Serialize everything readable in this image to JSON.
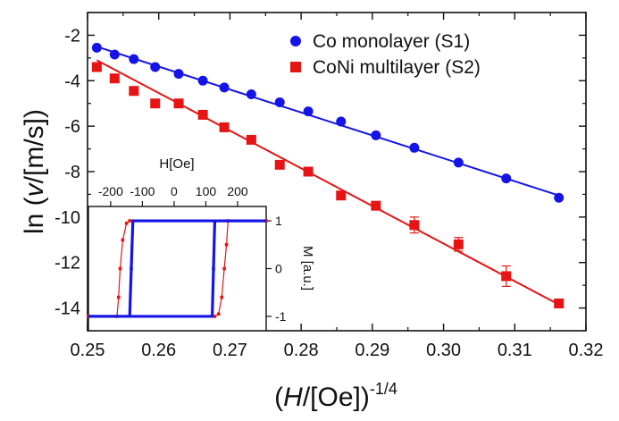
{
  "chart_data": [
    {
      "type": "scatter",
      "xlabel_main": "(H/[Oe])",
      "xlabel_italic": "H",
      "xlabel_exp": "-1/4",
      "ylabel_prefix": "ln (",
      "ylabel_italic": "v",
      "ylabel_suffix": "/[m/s])",
      "xlim": [
        0.25,
        0.32
      ],
      "ylim": [
        -15,
        -1
      ],
      "xticks": [
        "0.25",
        "0.26",
        "0.27",
        "0.28",
        "0.29",
        "0.30",
        "0.31",
        "0.32"
      ],
      "yticks": [
        "-14",
        "-12",
        "-10",
        "-8",
        "-6",
        "-4",
        "-2"
      ],
      "legend_position": "top-right",
      "series": [
        {
          "name": "Co monolayer (S1)",
          "marker": "circle",
          "color": "#1414e6",
          "x": [
            0.2513,
            0.2538,
            0.2565,
            0.2595,
            0.2628,
            0.2662,
            0.2692,
            0.273,
            0.277,
            0.281,
            0.2856,
            0.2905,
            0.2959,
            0.3021,
            0.3088,
            0.3162
          ],
          "y": [
            -2.55,
            -2.85,
            -3.05,
            -3.4,
            -3.7,
            -4.0,
            -4.3,
            -4.6,
            -4.95,
            -5.35,
            -5.8,
            -6.4,
            -6.95,
            -7.6,
            -8.3,
            -9.15
          ],
          "fit": [
            [
              0.2513,
              -2.5
            ],
            [
              0.3162,
              -9.05
            ]
          ]
        },
        {
          "name": "CoNi multilayer (S2)",
          "marker": "square",
          "color": "#e61414",
          "x": [
            0.2513,
            0.2538,
            0.2565,
            0.2595,
            0.2628,
            0.2662,
            0.2692,
            0.273,
            0.277,
            0.281,
            0.2856,
            0.2905,
            0.2959,
            0.3021,
            0.3088,
            0.3162
          ],
          "y": [
            -3.4,
            -3.9,
            -4.45,
            -5.0,
            -5.0,
            -5.5,
            -6.05,
            -6.6,
            -7.7,
            -8.0,
            -9.05,
            -9.5,
            -10.35,
            -11.2,
            -12.6,
            -13.8
          ],
          "err": [
            0,
            0,
            0,
            0,
            0,
            0,
            0,
            0,
            0,
            0,
            0,
            0,
            0.35,
            0.3,
            0.45,
            0
          ],
          "fit": [
            [
              0.2513,
              -3.1
            ],
            [
              0.3162,
              -13.85
            ]
          ]
        }
      ]
    },
    {
      "type": "line",
      "xlabel": "H[Oe]",
      "ylabel": "M [a.u.]",
      "xlim": [
        -270,
        290
      ],
      "ylim": [
        -1.3,
        1.3
      ],
      "xticks": [
        "-200",
        "-100",
        "0",
        "100",
        "200"
      ],
      "yticks": [
        "-1",
        "0",
        "1"
      ],
      "series": [
        {
          "name": "Co monolayer (S1)",
          "color": "#1414e6",
          "lower": [
            [
              -270,
              -1
            ],
            [
              -140,
              -1
            ],
            [
              -135,
              0.0
            ],
            [
              -130,
              1
            ],
            [
              290,
              1
            ]
          ],
          "upper": [
            [
              290,
              1
            ],
            [
              128,
              1
            ],
            [
              124,
              0.0
            ],
            [
              120,
              -1
            ],
            [
              -270,
              -1
            ]
          ]
        },
        {
          "name": "CoNi multilayer (S2)",
          "color": "#e61414",
          "lower": [
            [
              -270,
              -1
            ],
            [
              -180,
              -1
            ],
            [
              -175,
              -0.6
            ],
            [
              -170,
              0.0
            ],
            [
              -162,
              0.6
            ],
            [
              -150,
              0.95
            ],
            [
              -140,
              1
            ]
          ],
          "upper": [
            [
              290,
              1
            ],
            [
              170,
              1
            ],
            [
              165,
              0.5
            ],
            [
              158,
              0.0
            ],
            [
              150,
              -0.6
            ],
            [
              140,
              -0.95
            ],
            [
              128,
              -1
            ]
          ]
        }
      ]
    }
  ]
}
